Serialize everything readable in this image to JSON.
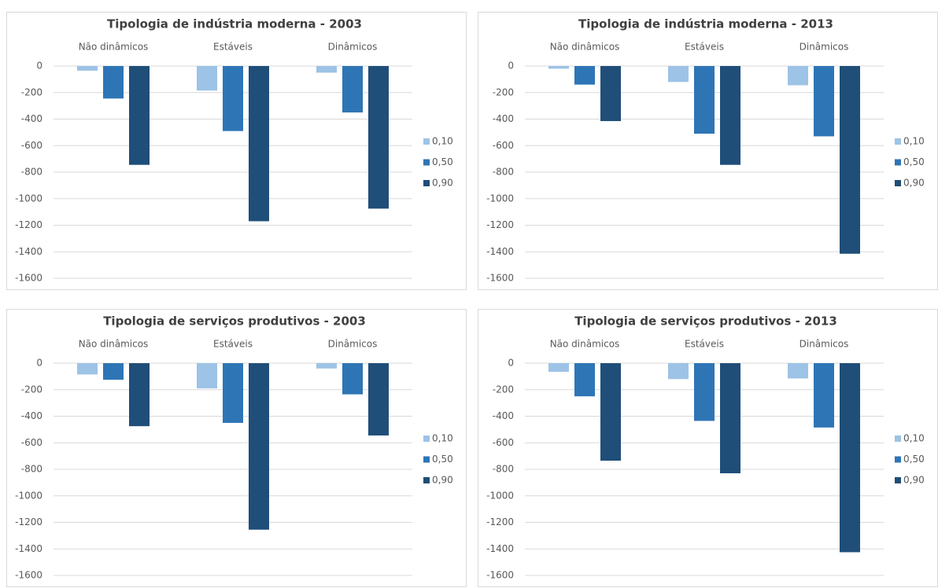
{
  "chart_data": [
    {
      "type": "bar",
      "title": "Tipologia de indústria moderna - 2003",
      "categories": [
        "Não dinâmicos",
        "Estáveis",
        "Dinâmicos"
      ],
      "series": [
        {
          "name": "0,10",
          "color": "#9dc3e6",
          "values": [
            -35,
            -185,
            -50
          ]
        },
        {
          "name": "0,50",
          "color": "#2e75b6",
          "values": [
            -245,
            -490,
            -350
          ]
        },
        {
          "name": "0,90",
          "color": "#1f4e79",
          "values": [
            -745,
            -1170,
            -1075
          ]
        }
      ],
      "ylim": [
        -1600,
        0
      ],
      "yticks": [
        0,
        -200,
        -400,
        -600,
        -800,
        -1000,
        -1200,
        -1400,
        -1600
      ],
      "grid": true,
      "legend": "right"
    },
    {
      "type": "bar",
      "title": "Tipologia de indústria moderna - 2013",
      "categories": [
        "Não dinâmicos",
        "Estáveis",
        "Dinâmicos"
      ],
      "series": [
        {
          "name": "0,10",
          "color": "#9dc3e6",
          "values": [
            -20,
            -120,
            -145
          ]
        },
        {
          "name": "0,50",
          "color": "#2e75b6",
          "values": [
            -140,
            -510,
            -530
          ]
        },
        {
          "name": "0,90",
          "color": "#1f4e79",
          "values": [
            -415,
            -745,
            -1415
          ]
        }
      ],
      "ylim": [
        -1600,
        0
      ],
      "yticks": [
        0,
        -200,
        -400,
        -600,
        -800,
        -1000,
        -1200,
        -1400,
        -1600
      ],
      "grid": true,
      "legend": "right"
    },
    {
      "type": "bar",
      "title": "Tipologia de serviços produtivos - 2003",
      "categories": [
        "Não dinâmicos",
        "Estáveis",
        "Dinâmicos"
      ],
      "series": [
        {
          "name": "0,10",
          "color": "#9dc3e6",
          "values": [
            -85,
            -190,
            -40
          ]
        },
        {
          "name": "0,50",
          "color": "#2e75b6",
          "values": [
            -125,
            -450,
            -235
          ]
        },
        {
          "name": "0,90",
          "color": "#1f4e79",
          "values": [
            -475,
            -1255,
            -545
          ]
        }
      ],
      "ylim": [
        -1600,
        0
      ],
      "yticks": [
        0,
        -200,
        -400,
        -600,
        -800,
        -1000,
        -1200,
        -1400,
        -1600
      ],
      "grid": true,
      "legend": "right"
    },
    {
      "type": "bar",
      "title": "Tipologia de serviços produtivos - 2013",
      "categories": [
        "Não dinâmicos",
        "Estáveis",
        "Dinâmicos"
      ],
      "series": [
        {
          "name": "0,10",
          "color": "#9dc3e6",
          "values": [
            -65,
            -120,
            -115
          ]
        },
        {
          "name": "0,50",
          "color": "#2e75b6",
          "values": [
            -250,
            -435,
            -485
          ]
        },
        {
          "name": "0,90",
          "color": "#1f4e79",
          "values": [
            -735,
            -830,
            -1425
          ]
        }
      ],
      "ylim": [
        -1600,
        0
      ],
      "yticks": [
        0,
        -200,
        -400,
        -600,
        -800,
        -1000,
        -1200,
        -1400,
        -1600
      ],
      "grid": true,
      "legend": "right"
    }
  ]
}
